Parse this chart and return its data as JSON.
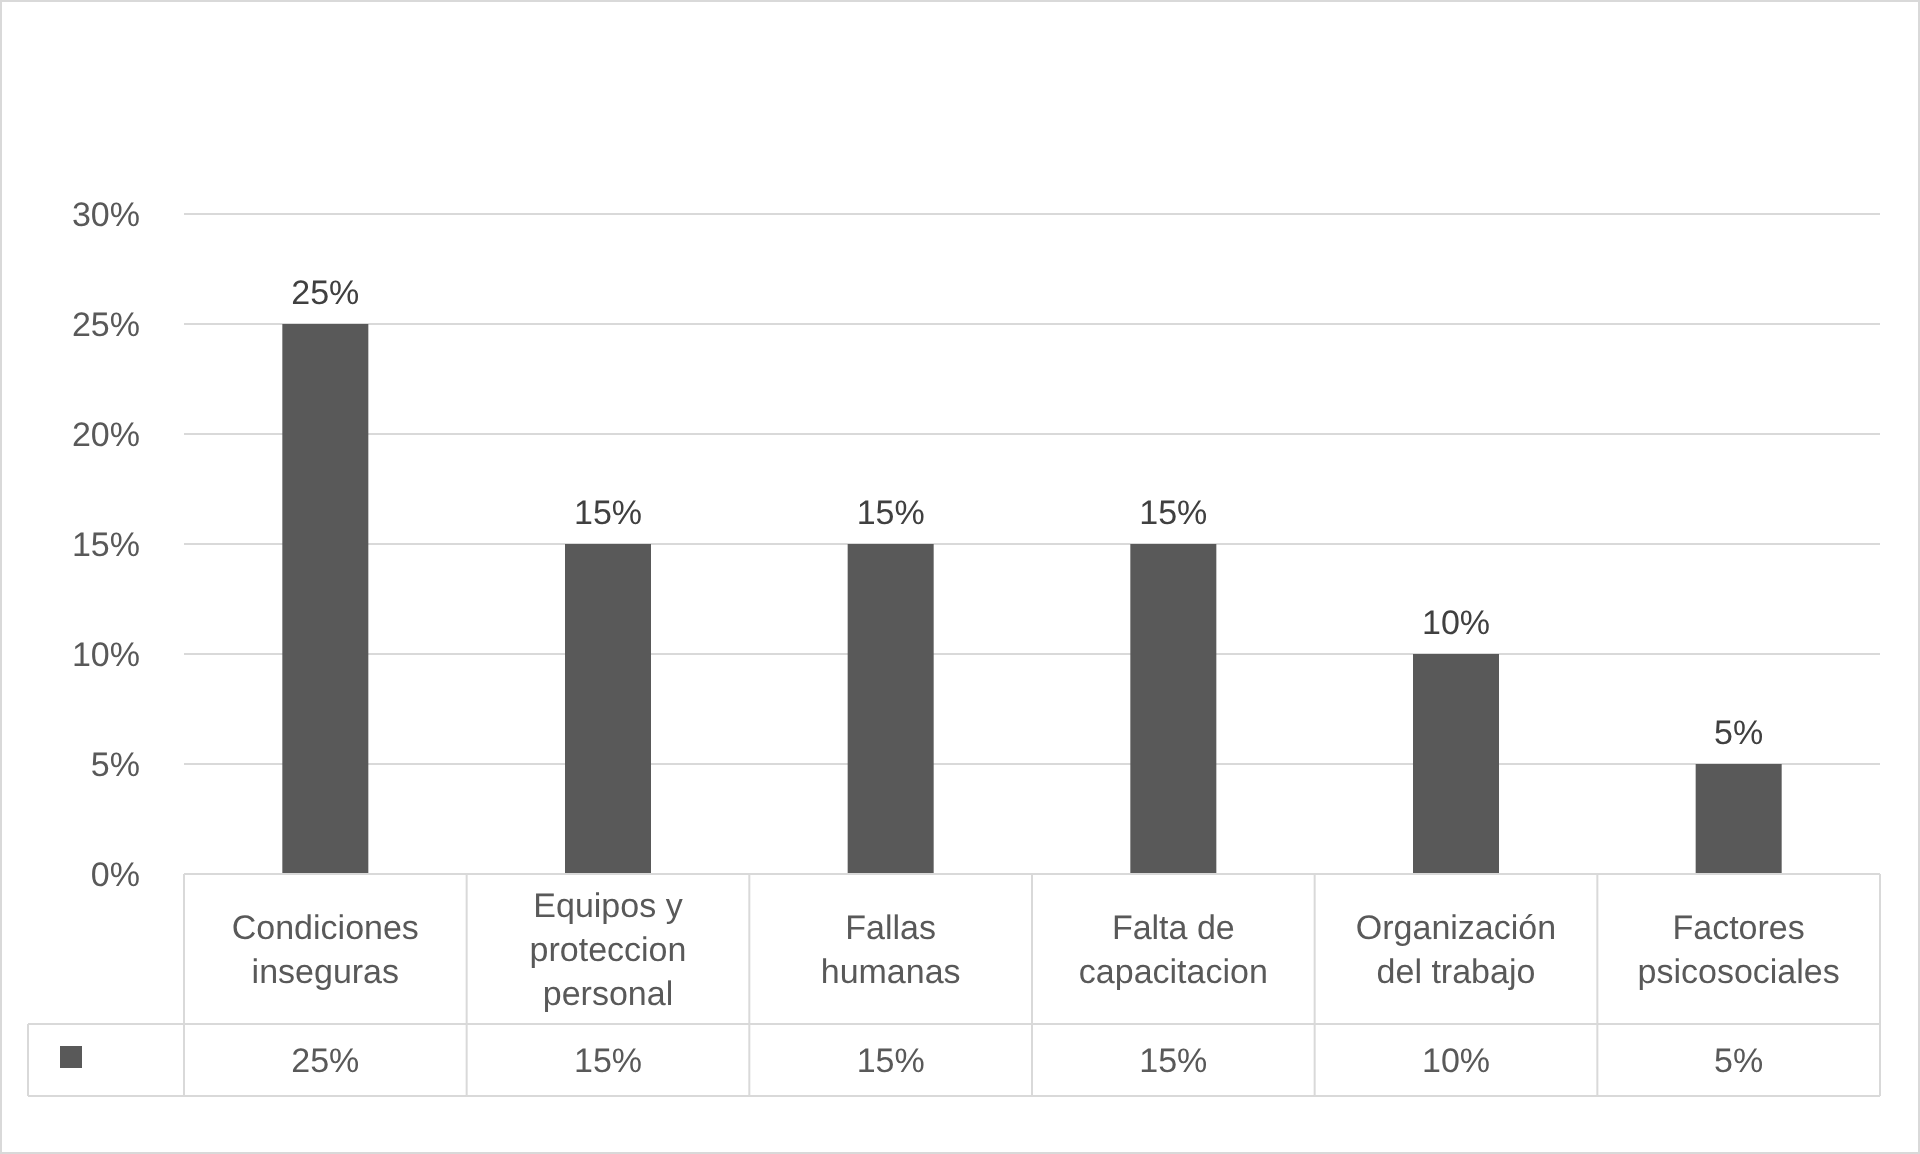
{
  "chart_data": {
    "type": "bar",
    "categories": [
      "Condiciones inseguras",
      "Equipos y proteccion personal",
      "Fallas humanas",
      "Falta de capacitacion",
      "Organización del trabajo",
      "Factores psicosociales"
    ],
    "values": [
      25,
      15,
      15,
      15,
      10,
      5
    ],
    "color": "#595959",
    "ylim": [
      0,
      30
    ],
    "yticks": [
      {
        "value": 0,
        "label": "0%"
      },
      {
        "value": 5,
        "label": "5%"
      },
      {
        "value": 10,
        "label": "10%"
      },
      {
        "value": 15,
        "label": "15%"
      },
      {
        "value": 20,
        "label": "20%"
      },
      {
        "value": 25,
        "label": "25%"
      },
      {
        "value": 30,
        "label": "30%"
      }
    ],
    "value_labels": [
      "25%",
      "15%",
      "15%",
      "15%",
      "10%",
      "5%"
    ],
    "grid": "y"
  }
}
